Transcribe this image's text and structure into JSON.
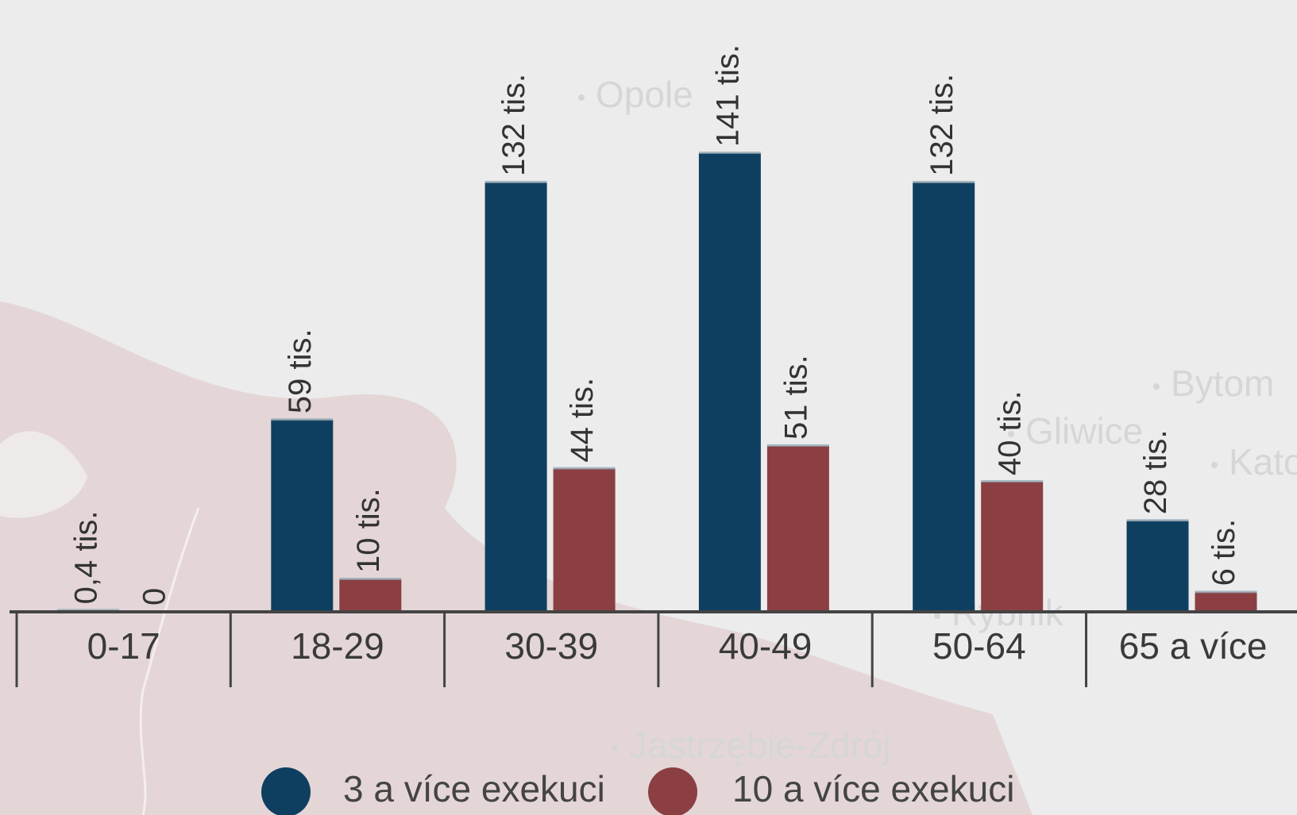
{
  "chart_data": {
    "type": "bar",
    "categories": [
      "0-17",
      "18-29",
      "30-39",
      "40-49",
      "50-64",
      "65 a více"
    ],
    "series": [
      {
        "name": "3 a více exekuci",
        "color": "#0f3f60",
        "values": [
          0.4,
          59,
          132,
          141,
          132,
          28
        ],
        "value_labels": [
          "0,4 tis.",
          "59 tis.",
          "132 tis.",
          "141 tis.",
          "132 tis.",
          "28 tis."
        ]
      },
      {
        "name": "10 a více exekuci",
        "color": "#8b3f43",
        "values": [
          0,
          10,
          44,
          51,
          40,
          6
        ],
        "value_labels": [
          "0",
          "10 tis.",
          "44 tis.",
          "51 tis.",
          "40 tis.",
          "6 tis."
        ]
      }
    ],
    "ylim": [
      0,
      141
    ]
  },
  "map_labels": [
    "Opole",
    "Bytom",
    "Gliwice",
    "Katowice",
    "Rybnik",
    "Jastrzębie-Zdrój"
  ]
}
